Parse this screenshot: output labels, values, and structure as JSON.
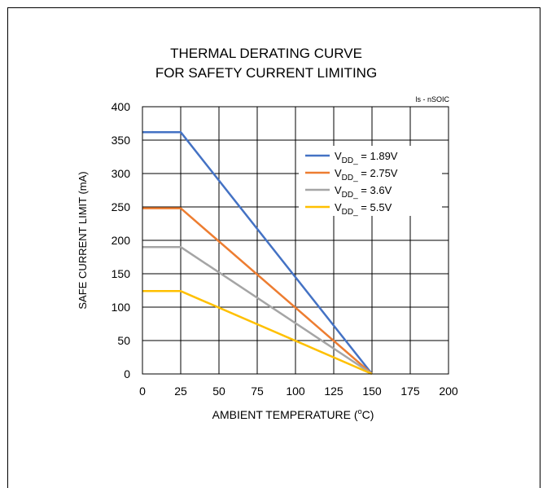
{
  "chart_data": {
    "type": "line",
    "title": [
      "THERMAL DERATING CURVE",
      "FOR SAFETY CURRENT LIMITING"
    ],
    "annotation": "ls - nSOIC",
    "xlabel": "AMBIENT TEMPERATURE (°C)",
    "xlabel_parts": {
      "prefix": "AMBIENT TEMPERATURE (",
      "sup": "o",
      "suffix": "C)"
    },
    "ylabel": "SAFE CURRENT LIMIT (mA)",
    "xlim": [
      0,
      200
    ],
    "ylim": [
      0,
      400
    ],
    "xticks": [
      0,
      25,
      50,
      75,
      100,
      125,
      150,
      175,
      200
    ],
    "yticks": [
      0,
      50,
      100,
      150,
      200,
      250,
      300,
      350,
      400
    ],
    "grid": true,
    "legend_position": "upper-right",
    "series": [
      {
        "name": "VDD_ = 1.89V",
        "label_main": "V",
        "label_sub": "DD_",
        "label_rest": " = 1.89V",
        "color": "#4472C4",
        "x": [
          0,
          25,
          150
        ],
        "y": [
          362,
          362,
          0
        ]
      },
      {
        "name": "VDD_ = 2.75V",
        "label_main": "V",
        "label_sub": "DD_",
        "label_rest": " = 2.75V",
        "color": "#ED7D31",
        "x": [
          0,
          25,
          150
        ],
        "y": [
          248,
          248,
          0
        ]
      },
      {
        "name": "VDD_ = 3.6V",
        "label_main": "V",
        "label_sub": "DD_",
        "label_rest": " = 3.6V",
        "color": "#A5A5A5",
        "x": [
          0,
          25,
          150
        ],
        "y": [
          190,
          190,
          0
        ]
      },
      {
        "name": "VDD_ = 5.5V",
        "label_main": "V",
        "label_sub": "DD_",
        "label_rest": " = 5.5V",
        "color": "#FFC000",
        "x": [
          0,
          25,
          150
        ],
        "y": [
          124,
          124,
          0
        ]
      }
    ]
  }
}
